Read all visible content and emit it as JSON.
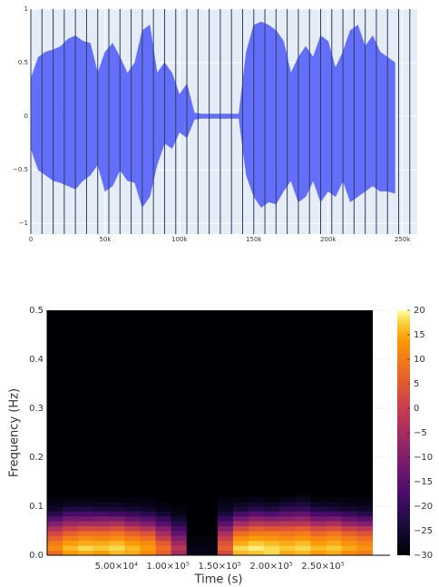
{
  "chart_data": [
    {
      "type": "area",
      "color": "#636efa",
      "grid": true,
      "vline_color": "#2a3f5f",
      "x": [
        0,
        5000,
        10000,
        15000,
        20000,
        25000,
        30000,
        35000,
        40000,
        45000,
        50000,
        55000,
        60000,
        65000,
        70000,
        75000,
        80000,
        85000,
        90000,
        95000,
        100000,
        105000,
        110000,
        115000,
        120000,
        125000,
        130000,
        135000,
        140000,
        145000,
        150000,
        155000,
        160000,
        165000,
        170000,
        175000,
        180000,
        185000,
        190000,
        195000,
        200000,
        205000,
        210000,
        215000,
        220000,
        225000,
        230000,
        235000,
        240000,
        245000
      ],
      "y_max": [
        0.35,
        0.55,
        0.6,
        0.62,
        0.65,
        0.72,
        0.75,
        0.7,
        0.68,
        0.4,
        0.6,
        0.68,
        0.55,
        0.4,
        0.5,
        0.8,
        0.85,
        0.4,
        0.5,
        0.4,
        0.2,
        0.3,
        0.03,
        0.02,
        0.02,
        0.02,
        0.02,
        0.02,
        0.02,
        0.6,
        0.85,
        0.88,
        0.85,
        0.8,
        0.7,
        0.4,
        0.55,
        0.65,
        0.55,
        0.75,
        0.7,
        0.45,
        0.6,
        0.8,
        0.85,
        0.65,
        0.75,
        0.6,
        0.55,
        0.5
      ],
      "y_min": [
        -0.3,
        -0.5,
        -0.55,
        -0.6,
        -0.62,
        -0.65,
        -0.68,
        -0.6,
        -0.55,
        -0.45,
        -0.7,
        -0.65,
        -0.5,
        -0.6,
        -0.62,
        -0.85,
        -0.75,
        -0.45,
        -0.25,
        -0.3,
        -0.15,
        -0.2,
        -0.03,
        -0.02,
        -0.02,
        -0.02,
        -0.02,
        -0.02,
        -0.02,
        -0.55,
        -0.75,
        -0.85,
        -0.8,
        -0.82,
        -0.7,
        -0.6,
        -0.8,
        -0.75,
        -0.6,
        -0.8,
        -0.7,
        -0.75,
        -0.6,
        -0.8,
        -0.75,
        -0.7,
        -0.65,
        -0.7,
        -0.7,
        -0.72
      ],
      "vlines": [
        0,
        7500,
        15000,
        22500,
        30000,
        37500,
        45000,
        52500,
        60000,
        67500,
        75000,
        82500,
        90000,
        97500,
        105000,
        112500,
        120000,
        127500,
        135000,
        142500,
        150000,
        157500,
        165000,
        172500,
        180000,
        187500,
        195000,
        202500,
        210000,
        217500,
        225000,
        232500,
        240000,
        247500,
        255000
      ],
      "xlim": [
        0,
        260000
      ],
      "ylim": [
        -1.1,
        1.0
      ],
      "xticks": [
        0,
        {
          "value": 50000,
          "label": "50k"
        },
        {
          "value": 100000,
          "label": "100k"
        },
        {
          "value": 150000,
          "label": "150k"
        },
        {
          "value": 200000,
          "label": "200k"
        },
        {
          "value": 250000,
          "label": "250k"
        }
      ],
      "yticks": [
        {
          "value": -1,
          "label": "−1"
        },
        {
          "value": -0.5,
          "label": "−0.5"
        },
        0,
        0.5,
        1
      ]
    },
    {
      "type": "heatmap",
      "xlabel": "Time (s)",
      "ylabel": "Frequency (Hz)",
      "colormap": "inferno",
      "grid": true,
      "xbins": [
        -17000,
        -2000,
        13000,
        28000,
        43000,
        58000,
        73000,
        88000,
        103000,
        118000,
        133000,
        148000,
        163000,
        178000,
        193000,
        208000,
        223000,
        238000,
        253000,
        268000,
        283000,
        298000
      ],
      "ybins": [
        0,
        0.01,
        0.02,
        0.03,
        0.04,
        0.05,
        0.06,
        0.07,
        0.08,
        0.09,
        0.1,
        0.11,
        0.12,
        0.13,
        0.5
      ],
      "z": [
        [
          8,
          14,
          15,
          14,
          16,
          15,
          12,
          6,
          -5,
          -28,
          -28,
          2,
          16,
          17,
          18,
          15,
          16,
          14,
          15,
          12,
          10
        ],
        [
          12,
          16,
          18,
          17,
          18,
          16,
          14,
          8,
          -2,
          -28,
          -28,
          6,
          18,
          19,
          18,
          17,
          18,
          16,
          17,
          15,
          13
        ],
        [
          10,
          14,
          15,
          15,
          16,
          14,
          12,
          5,
          -6,
          -29,
          -29,
          4,
          15,
          17,
          16,
          15,
          16,
          14,
          15,
          13,
          11
        ],
        [
          6,
          10,
          12,
          11,
          12,
          10,
          8,
          0,
          -10,
          -29,
          -29,
          0,
          12,
          14,
          13,
          12,
          13,
          11,
          12,
          10,
          8
        ],
        [
          2,
          6,
          8,
          8,
          9,
          6,
          4,
          -5,
          -14,
          -30,
          -30,
          -4,
          8,
          10,
          10,
          9,
          10,
          7,
          9,
          6,
          4
        ],
        [
          -4,
          0,
          2,
          2,
          3,
          0,
          -3,
          -10,
          -18,
          -30,
          -30,
          -10,
          2,
          5,
          4,
          4,
          5,
          2,
          3,
          0,
          -2
        ],
        [
          -10,
          -6,
          -5,
          -5,
          -4,
          -8,
          -10,
          -16,
          -22,
          -30,
          -30,
          -15,
          -5,
          -2,
          -3,
          -2,
          -2,
          -5,
          -4,
          -8,
          -10
        ],
        [
          -16,
          -12,
          -12,
          -11,
          -11,
          -14,
          -16,
          -20,
          -25,
          -30,
          -30,
          -20,
          -12,
          -9,
          -10,
          -9,
          -8,
          -12,
          -11,
          -14,
          -16
        ],
        [
          -22,
          -18,
          -18,
          -18,
          -19,
          -20,
          -22,
          -25,
          -28,
          -30,
          -30,
          -24,
          -18,
          -16,
          -17,
          -15,
          -14,
          -18,
          -18,
          -20,
          -22
        ],
        [
          -26,
          -23,
          -23,
          -24,
          -24,
          -25,
          -26,
          -28,
          -29,
          -30,
          -30,
          -27,
          -24,
          -22,
          -23,
          -21,
          -20,
          -23,
          -24,
          -25,
          -26
        ],
        [
          -28,
          -27,
          -27,
          -27,
          -27,
          -28,
          -28,
          -29,
          -30,
          -30,
          -30,
          -28,
          -27,
          -26,
          -27,
          -25,
          -24,
          -27,
          -27,
          -28,
          -28
        ],
        [
          -29,
          -29,
          -29,
          -29,
          -29,
          -29,
          -29,
          -30,
          -30,
          -30,
          -30,
          -29,
          -29,
          -28,
          -29,
          -28,
          -27,
          -29,
          -29,
          -29,
          -29
        ],
        [
          -30,
          -30,
          -30,
          -30,
          -30,
          -30,
          -30,
          -30,
          -30,
          -30,
          -30,
          -30,
          -30,
          -30,
          -30,
          -30,
          -29,
          -30,
          -30,
          -30,
          -30
        ],
        [
          -30,
          -30,
          -30,
          -30,
          -30,
          -30,
          -30,
          -30,
          -30,
          -30,
          -30,
          -30,
          -30,
          -30,
          -30,
          -30,
          -30,
          -30,
          -30,
          -30,
          -30
        ]
      ],
      "xlim": [
        -17000,
        315000
      ],
      "ylim": [
        0,
        0.5
      ],
      "xticks": [
        {
          "value": 50000,
          "label": "5.00×10⁴"
        },
        {
          "value": 100000,
          "label": "1.00×10⁵"
        },
        {
          "value": 150000,
          "label": "1.50×10⁵"
        },
        {
          "value": 200000,
          "label": "2.00×10⁵"
        },
        {
          "value": 250000,
          "label": "2.50×10⁵"
        }
      ],
      "yticks": [
        {
          "value": 0,
          "label": "0.0"
        },
        0.1,
        0.2,
        0.3,
        0.4,
        0.5
      ],
      "clim": [
        -30,
        20
      ],
      "cticks": [
        {
          "value": -30,
          "label": "−30"
        },
        {
          "value": -25,
          "label": "−25"
        },
        {
          "value": -20,
          "label": "−20"
        },
        {
          "value": -15,
          "label": "−15"
        },
        {
          "value": -10,
          "label": "−10"
        },
        {
          "value": -5,
          "label": "−5"
        },
        0,
        5,
        10,
        15,
        20
      ]
    }
  ]
}
